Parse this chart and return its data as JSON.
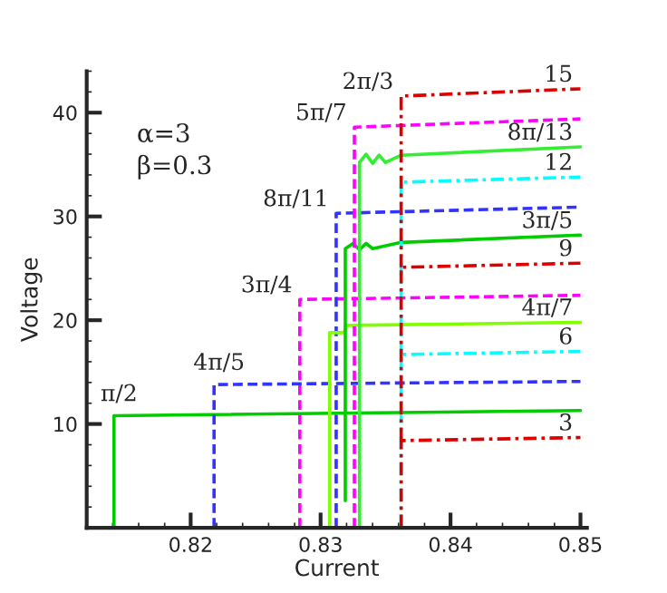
{
  "chart_data": {
    "type": "line",
    "xlabel": "Current",
    "ylabel": "Voltage",
    "xlim": [
      0.812,
      0.8505
    ],
    "ylim": [
      0,
      44
    ],
    "xticks": [
      0.82,
      0.83,
      0.84,
      0.85
    ],
    "yticks": [
      10,
      20,
      30,
      40
    ],
    "grid": false,
    "marker": "none",
    "series": [
      {
        "color": "#00cc00",
        "line_style": "solid",
        "x": [
          0.8141,
          0.8141,
          0.85
        ],
        "values": [
          0,
          10.8,
          11.3
        ]
      },
      {
        "color": "#3333ff",
        "line_style": "dashed",
        "x": [
          0.8218,
          0.8218,
          0.85
        ],
        "values": [
          0,
          13.8,
          14.1
        ]
      },
      {
        "color": "#ff00ff",
        "line_style": "dashed",
        "x": [
          0.8284,
          0.8284,
          0.85
        ],
        "values": [
          0,
          22.0,
          22.4
        ]
      },
      {
        "color": "#3333ff",
        "line_style": "dashed",
        "x": [
          0.8312,
          0.8312,
          0.85
        ],
        "values": [
          0,
          30.3,
          30.9
        ]
      },
      {
        "color": "#80ff00",
        "line_style": "solid",
        "x": [
          0.8307,
          0.8307,
          0.8318,
          0.832,
          0.85
        ],
        "values": [
          0,
          18.8,
          18.8,
          19.5,
          19.8
        ]
      },
      {
        "color": "#00cc00",
        "line_style": "solid",
        "x": [
          0.8319,
          0.8319,
          0.8325,
          0.833,
          0.8335,
          0.834,
          0.8362,
          0.85
        ],
        "values": [
          2.6,
          26.9,
          27.4,
          26.8,
          27.4,
          26.9,
          27.5,
          28.2
        ]
      },
      {
        "color": "#ff00ff",
        "line_style": "dashed",
        "x": [
          0.8326,
          0.8326,
          0.85
        ],
        "values": [
          0,
          38.6,
          39.4
        ]
      },
      {
        "color": "#33ee33",
        "line_style": "solid",
        "x": [
          0.833,
          0.833,
          0.8335,
          0.834,
          0.8345,
          0.835,
          0.8362,
          0.85
        ],
        "values": [
          0,
          35.2,
          36.0,
          35.1,
          35.9,
          35.2,
          35.9,
          36.7
        ]
      },
      {
        "color": "#00ffff",
        "line_style": "dashdot",
        "x": [
          0.8362,
          0.8362,
          0.85
        ],
        "values": [
          0,
          16.7,
          17.0
        ]
      },
      {
        "color": "#00ffff",
        "line_style": "dashdot",
        "x": [
          0.8362,
          0.8362,
          0.85
        ],
        "values": [
          16.7,
          33.3,
          33.8
        ]
      },
      {
        "color": "#dd0000",
        "line_style": "dashdot",
        "x": [
          0.8362,
          0.8362,
          0.85
        ],
        "values": [
          0,
          8.4,
          8.7
        ]
      },
      {
        "color": "#dd0000",
        "line_style": "dashdot",
        "x": [
          0.8362,
          0.8362,
          0.85
        ],
        "values": [
          8.4,
          25.1,
          25.5
        ]
      },
      {
        "color": "#dd0000",
        "line_style": "dashdot",
        "x": [
          0.8362,
          0.8362,
          0.85
        ],
        "values": [
          25.1,
          41.6,
          42.3
        ]
      }
    ],
    "annotations": [
      "α=3",
      "β=0.3",
      {
        "text": "π/2",
        "x": 0.8141,
        "y": 10.8
      },
      {
        "text": "4π/5",
        "x": 0.8218,
        "y": 13.8
      },
      {
        "text": "3π/4",
        "x": 0.8284,
        "y": 22.0
      },
      {
        "text": "8π/11",
        "x": 0.8312,
        "y": 30.3
      },
      {
        "text": "5π/7",
        "x": 0.8326,
        "y": 38.6
      },
      {
        "text": "2π/3",
        "x": 0.8362,
        "y": 41.6
      },
      {
        "text": "8π/13",
        "x": 0.85,
        "y": 36.7
      },
      {
        "text": "3π/5",
        "x": 0.85,
        "y": 28.2
      },
      {
        "text": "4π/7",
        "x": 0.85,
        "y": 19.8
      },
      {
        "text": "15",
        "x": 0.85,
        "y": 42.3
      },
      {
        "text": "12",
        "x": 0.85,
        "y": 33.8
      },
      {
        "text": "9",
        "x": 0.85,
        "y": 25.5
      },
      {
        "text": "6",
        "x": 0.85,
        "y": 17.0
      },
      {
        "text": "3",
        "x": 0.85,
        "y": 8.7
      }
    ]
  }
}
